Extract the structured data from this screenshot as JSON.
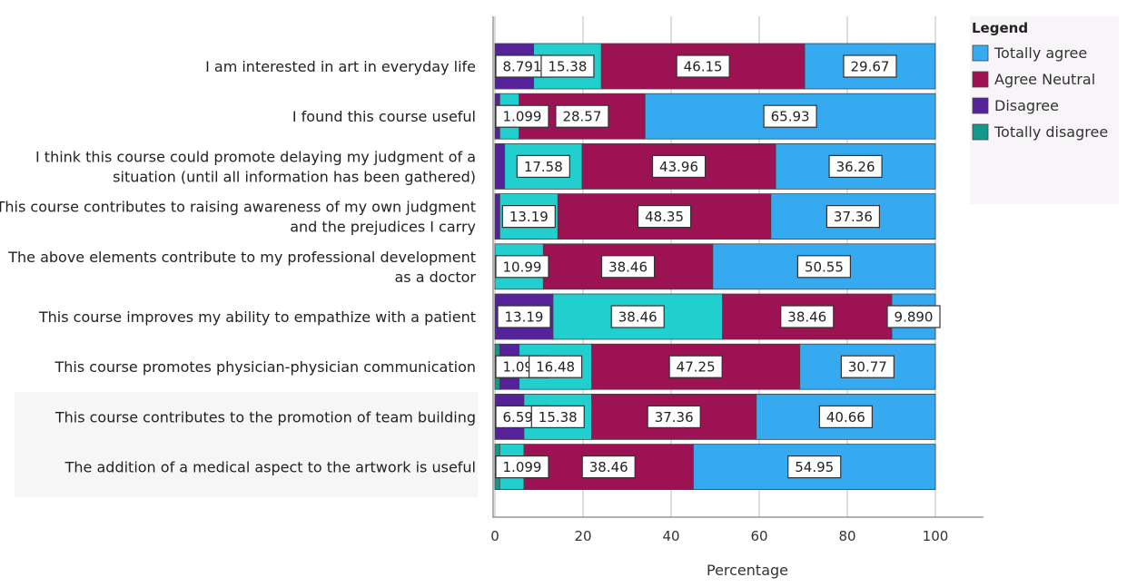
{
  "chart_data": {
    "type": "bar",
    "orientation": "horizontal",
    "stacked": true,
    "xlabel": "Percentage",
    "xlim": [
      0,
      100
    ],
    "xticks": [
      0,
      20,
      40,
      60,
      80,
      100
    ],
    "grid": true,
    "legend": {
      "title": "Legend",
      "placement": "right",
      "entries": [
        "Totally agree",
        "Agree Neutral",
        "Disagree",
        "Totally disagree"
      ]
    },
    "categories": [
      [
        "I am interested in art in everyday life"
      ],
      [
        "I found this course useful"
      ],
      [
        "I think this course could promote delaying my judgment of a",
        "situation (until all information has been gathered)"
      ],
      [
        "This course contributes to raising awareness of my own judgment",
        "and the prejudices I carry"
      ],
      [
        "The above elements contribute to my professional development",
        "as a doctor"
      ],
      [
        "This course improves my ability to empathize with a patient"
      ],
      [
        "This course promotes physician-physician communication"
      ],
      [
        "This course contributes to the promotion of team building"
      ],
      [
        "The addition of a medical aspect to the artwork is useful"
      ]
    ],
    "segment_order": [
      "Totally disagree",
      "Disagree",
      "Neutral",
      "Agree",
      "Totally agree"
    ],
    "colors": {
      "Totally disagree": "#12998a",
      "Disagree": "#55229a",
      "Neutral": "#22cfcf",
      "Agree": "#9c1252",
      "Totally agree": "#35aaf0"
    },
    "values": [
      [
        0,
        8.791,
        15.38,
        46.15,
        29.67
      ],
      [
        0,
        1.099,
        4.396,
        28.57,
        65.93
      ],
      [
        0,
        2.2,
        17.58,
        43.96,
        36.26
      ],
      [
        0,
        1.1,
        13.19,
        48.35,
        37.36
      ],
      [
        0,
        0,
        10.99,
        38.46,
        50.55
      ],
      [
        0,
        13.19,
        38.46,
        38.46,
        9.89
      ],
      [
        1.099,
        4.396,
        16.48,
        47.25,
        30.77
      ],
      [
        0,
        6.593,
        15.38,
        37.36,
        40.66
      ],
      [
        1.099,
        0,
        5.49,
        38.46,
        54.95
      ]
    ],
    "labels": [
      [
        null,
        "8.791",
        "15.38",
        "46.15",
        "29.67"
      ],
      [
        null,
        "1.099",
        null,
        "28.57",
        "65.93"
      ],
      [
        null,
        null,
        "17.58",
        "43.96",
        "36.26"
      ],
      [
        null,
        null,
        "13.19",
        "48.35",
        "37.36"
      ],
      [
        null,
        null,
        "10.99",
        "38.46",
        "50.55"
      ],
      [
        null,
        "13.19",
        "38.46",
        "38.46",
        "9.890"
      ],
      [
        "1.099",
        null,
        "16.48",
        "47.25",
        "30.77"
      ],
      [
        null,
        "6.593",
        "15.38",
        "37.36",
        "40.66"
      ],
      [
        "1.099",
        null,
        null,
        "38.46",
        "54.95"
      ]
    ]
  }
}
